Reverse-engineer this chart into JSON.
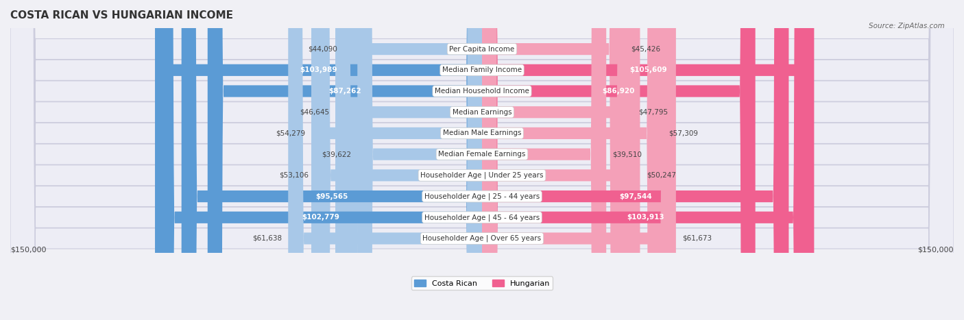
{
  "title": "COSTA RICAN VS HUNGARIAN INCOME",
  "source": "Source: ZipAtlas.com",
  "categories": [
    "Per Capita Income",
    "Median Family Income",
    "Median Household Income",
    "Median Earnings",
    "Median Male Earnings",
    "Median Female Earnings",
    "Householder Age | Under 25 years",
    "Householder Age | 25 - 44 years",
    "Householder Age | 45 - 64 years",
    "Householder Age | Over 65 years"
  ],
  "costa_rican": [
    44090,
    103989,
    87262,
    46645,
    54279,
    39622,
    53106,
    95565,
    102779,
    61638
  ],
  "hungarian": [
    45426,
    105609,
    86920,
    47795,
    57309,
    39510,
    50247,
    97544,
    103913,
    61673
  ],
  "max_val": 150000,
  "color_cr_light": "#a8c8e8",
  "color_cr_dark": "#5b9bd5",
  "color_hu_light": "#f4a0b8",
  "color_hu_dark": "#f06090",
  "bg_color": "#f0f0f5",
  "bar_bg_color": "#e8e8f0",
  "label_bg": "#ffffff",
  "title_color": "#333333",
  "source_color": "#666666",
  "value_color_inside": "#ffffff",
  "value_color_outside": "#555555"
}
